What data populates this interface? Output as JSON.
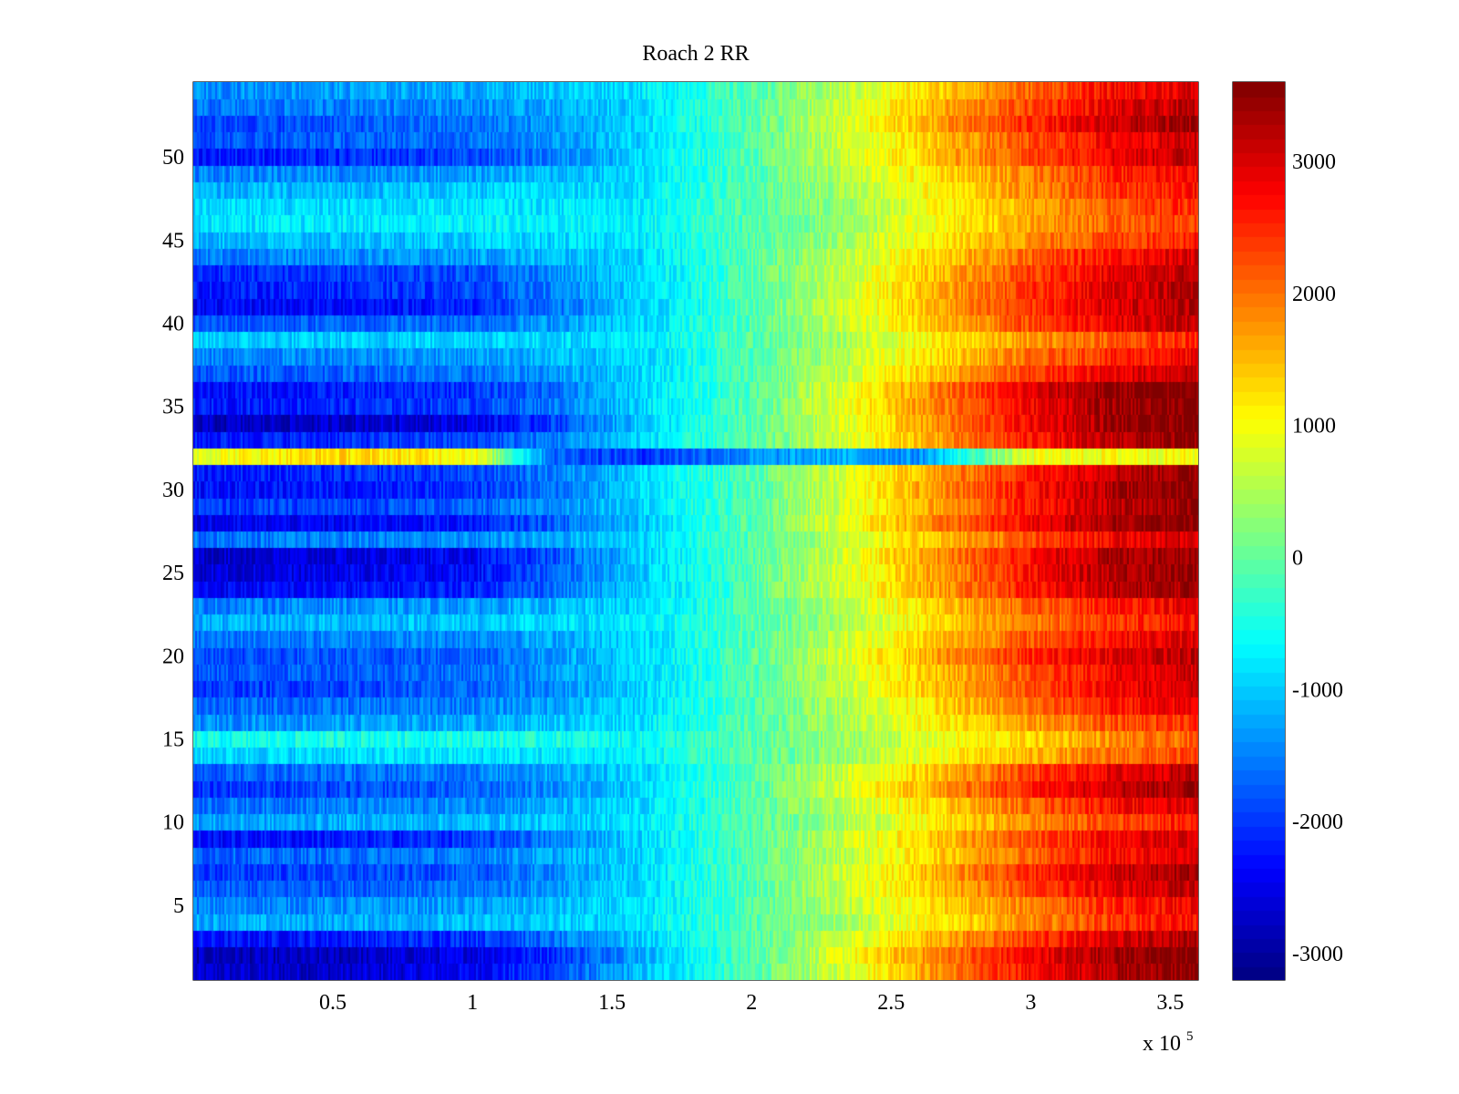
{
  "chart_data": {
    "type": "heatmap",
    "title": "Roach 2 RR",
    "xlabel": "",
    "ylabel": "",
    "x_multiplier_label": {
      "base": "x 10",
      "exponent": "5"
    },
    "xlim": [
      0,
      360000
    ],
    "ylim": [
      0.5,
      54.5
    ],
    "x_ticks": [
      50000,
      100000,
      150000,
      200000,
      250000,
      300000,
      350000
    ],
    "x_tick_labels": [
      "0.5",
      "1",
      "1.5",
      "2",
      "2.5",
      "3",
      "3.5"
    ],
    "y_ticks": [
      5,
      10,
      15,
      20,
      25,
      30,
      35,
      40,
      45,
      50
    ],
    "y_tick_labels": [
      "5",
      "10",
      "15",
      "20",
      "25",
      "30",
      "35",
      "40",
      "45",
      "50"
    ],
    "rows": 54,
    "colormap": "jet",
    "clim": [
      -3200,
      3600
    ],
    "colorbar_ticks": [
      -3000,
      -2000,
      -1000,
      0,
      1000,
      2000,
      3000
    ],
    "colorbar_tick_labels": [
      "-3000",
      "-2000",
      "-1000",
      "0",
      "1000",
      "2000",
      "3000"
    ],
    "trend_x": [
      0,
      50000,
      100000,
      130000,
      160000,
      200000,
      230000,
      260000,
      300000,
      330000,
      360000
    ],
    "row_profiles": [
      {
        "row": 1,
        "values": [
          -2700,
          -2700,
          -2400,
          -1900,
          -1100,
          -100,
          700,
          1600,
          2700,
          3300,
          3500
        ]
      },
      {
        "row": 2,
        "values": [
          -2800,
          -2800,
          -2500,
          -2000,
          -1200,
          -100,
          800,
          1700,
          2800,
          3400,
          3600
        ]
      },
      {
        "row": 3,
        "values": [
          -2300,
          -2200,
          -2000,
          -1600,
          -1000,
          -100,
          600,
          1400,
          2400,
          3000,
          3300
        ]
      },
      {
        "row": 4,
        "values": [
          -1200,
          -1200,
          -1100,
          -1000,
          -800,
          -100,
          400,
          1000,
          1800,
          2400,
          2700
        ]
      },
      {
        "row": 5,
        "values": [
          -1500,
          -1400,
          -1300,
          -1100,
          -900,
          -100,
          500,
          1100,
          1900,
          2500,
          2800
        ]
      },
      {
        "row": 6,
        "values": [
          -1800,
          -1700,
          -1600,
          -1300,
          -900,
          -100,
          600,
          1300,
          2300,
          2900,
          3200
        ]
      },
      {
        "row": 7,
        "values": [
          -2000,
          -1900,
          -1800,
          -1400,
          -900,
          -100,
          600,
          1400,
          2500,
          3100,
          3400
        ]
      },
      {
        "row": 8,
        "values": [
          -1700,
          -1600,
          -1500,
          -1200,
          -900,
          -100,
          500,
          1200,
          2100,
          2700,
          3000
        ]
      },
      {
        "row": 9,
        "values": [
          -2300,
          -2200,
          -2000,
          -1500,
          -900,
          -100,
          600,
          1300,
          2200,
          2800,
          3100
        ]
      },
      {
        "row": 10,
        "values": [
          -1300,
          -1200,
          -1100,
          -1000,
          -800,
          -100,
          400,
          1000,
          1800,
          2300,
          2600
        ]
      },
      {
        "row": 11,
        "values": [
          -1600,
          -1500,
          -1400,
          -1200,
          -900,
          -100,
          500,
          1200,
          2100,
          2700,
          3000
        ]
      },
      {
        "row": 12,
        "values": [
          -2000,
          -1900,
          -1700,
          -1400,
          -900,
          -100,
          700,
          1500,
          2600,
          3200,
          3400
        ]
      },
      {
        "row": 13,
        "values": [
          -1700,
          -1600,
          -1500,
          -1200,
          -900,
          -100,
          600,
          1300,
          2300,
          2900,
          3200
        ]
      },
      {
        "row": 14,
        "values": [
          -900,
          -900,
          -800,
          -800,
          -700,
          -100,
          300,
          900,
          1500,
          2000,
          2300
        ]
      },
      {
        "row": 15,
        "values": [
          -600,
          -500,
          -500,
          -500,
          -600,
          -100,
          300,
          800,
          1300,
          1800,
          2100
        ]
      },
      {
        "row": 16,
        "values": [
          -1400,
          -1300,
          -1200,
          -1000,
          -800,
          -100,
          400,
          1000,
          1700,
          2200,
          2500
        ]
      },
      {
        "row": 17,
        "values": [
          -1700,
          -1600,
          -1500,
          -1200,
          -900,
          -100,
          500,
          1100,
          2000,
          2600,
          2900
        ]
      },
      {
        "row": 18,
        "values": [
          -2000,
          -1900,
          -1700,
          -1400,
          -900,
          -100,
          600,
          1300,
          2200,
          2800,
          3100
        ]
      },
      {
        "row": 19,
        "values": [
          -1800,
          -1700,
          -1600,
          -1300,
          -900,
          -100,
          600,
          1300,
          2200,
          2800,
          3100
        ]
      },
      {
        "row": 20,
        "values": [
          -1900,
          -1800,
          -1700,
          -1300,
          -900,
          -100,
          700,
          1500,
          2500,
          3000,
          3200
        ]
      },
      {
        "row": 21,
        "values": [
          -1600,
          -1500,
          -1400,
          -1200,
          -900,
          -100,
          600,
          1300,
          2200,
          2700,
          3000
        ]
      },
      {
        "row": 22,
        "values": [
          -1200,
          -1100,
          -1000,
          -900,
          -800,
          -100,
          400,
          1100,
          1900,
          2400,
          2700
        ]
      },
      {
        "row": 23,
        "values": [
          -1500,
          -1400,
          -1300,
          -1100,
          -900,
          -100,
          500,
          1200,
          2100,
          2600,
          2900
        ]
      },
      {
        "row": 24,
        "values": [
          -2400,
          -2300,
          -2100,
          -1600,
          -1000,
          -100,
          700,
          1500,
          2600,
          3200,
          3400
        ]
      },
      {
        "row": 25,
        "values": [
          -2600,
          -2500,
          -2300,
          -1700,
          -1000,
          -100,
          700,
          1500,
          2700,
          3300,
          3500
        ]
      },
      {
        "row": 26,
        "values": [
          -2700,
          -2600,
          -2400,
          -1800,
          -1000,
          -100,
          700,
          1600,
          2700,
          3300,
          3500
        ]
      },
      {
        "row": 27,
        "values": [
          -1600,
          -1500,
          -1400,
          -1200,
          -900,
          -100,
          600,
          1300,
          2200,
          2800,
          3100
        ]
      },
      {
        "row": 28,
        "values": [
          -2500,
          -2400,
          -2200,
          -1700,
          -1000,
          -100,
          800,
          1700,
          2800,
          3400,
          3600
        ]
      },
      {
        "row": 29,
        "values": [
          -2000,
          -1900,
          -1700,
          -1400,
          -900,
          -100,
          700,
          1500,
          2600,
          3200,
          3500
        ]
      },
      {
        "row": 30,
        "values": [
          -2300,
          -2200,
          -2000,
          -1600,
          -900,
          -100,
          700,
          1600,
          2700,
          3300,
          3600
        ]
      },
      {
        "row": 31,
        "values": [
          -2200,
          -2100,
          -1900,
          -1500,
          -900,
          -100,
          700,
          1500,
          2600,
          3200,
          3500
        ]
      },
      {
        "row": 32,
        "values": [
          900,
          1300,
          1100,
          -1700,
          -2000,
          -1400,
          -1200,
          -1400,
          900,
          1000,
          1000
        ]
      },
      {
        "row": 33,
        "values": [
          -2200,
          -2100,
          -1900,
          -1500,
          -900,
          -100,
          700,
          1500,
          2600,
          3200,
          3500
        ]
      },
      {
        "row": 34,
        "values": [
          -2800,
          -2700,
          -2500,
          -1900,
          -1000,
          -100,
          700,
          1600,
          2800,
          3400,
          3600
        ]
      },
      {
        "row": 35,
        "values": [
          -2200,
          -2100,
          -1900,
          -1500,
          -900,
          -100,
          800,
          1700,
          2800,
          3400,
          3600
        ]
      },
      {
        "row": 36,
        "values": [
          -2300,
          -2200,
          -2000,
          -1600,
          -900,
          -100,
          800,
          1700,
          2900,
          3500,
          3600
        ]
      },
      {
        "row": 37,
        "values": [
          -1800,
          -1700,
          -1600,
          -1300,
          -900,
          -100,
          600,
          1300,
          2300,
          2900,
          3200
        ]
      },
      {
        "row": 38,
        "values": [
          -1500,
          -1400,
          -1300,
          -1100,
          -900,
          -100,
          500,
          1100,
          2000,
          2500,
          2800
        ]
      },
      {
        "row": 39,
        "values": [
          -1000,
          -1000,
          -900,
          -900,
          -800,
          -100,
          400,
          1000,
          1700,
          2200,
          2500
        ]
      },
      {
        "row": 40,
        "values": [
          -1800,
          -1700,
          -1600,
          -1300,
          -900,
          -100,
          600,
          1300,
          2300,
          2900,
          3200
        ]
      },
      {
        "row": 41,
        "values": [
          -2400,
          -2300,
          -2100,
          -1600,
          -1000,
          -100,
          700,
          1400,
          2400,
          3000,
          3300
        ]
      },
      {
        "row": 42,
        "values": [
          -2200,
          -2100,
          -1900,
          -1500,
          -900,
          -100,
          600,
          1400,
          2400,
          3000,
          3300
        ]
      },
      {
        "row": 43,
        "values": [
          -2100,
          -2000,
          -1800,
          -1400,
          -900,
          -100,
          600,
          1300,
          2300,
          2900,
          3200
        ]
      },
      {
        "row": 44,
        "values": [
          -1500,
          -1400,
          -1300,
          -1100,
          -900,
          -100,
          500,
          1200,
          2100,
          2700,
          3000
        ]
      },
      {
        "row": 45,
        "values": [
          -1100,
          -1100,
          -1000,
          -900,
          -800,
          -100,
          400,
          1000,
          1800,
          2300,
          2600
        ]
      },
      {
        "row": 46,
        "values": [
          -800,
          -800,
          -700,
          -700,
          -700,
          -100,
          300,
          900,
          1600,
          2100,
          2400
        ]
      },
      {
        "row": 47,
        "values": [
          -900,
          -900,
          -800,
          -800,
          -700,
          -100,
          300,
          900,
          1600,
          2200,
          2500
        ]
      },
      {
        "row": 48,
        "values": [
          -1200,
          -1100,
          -1000,
          -900,
          -800,
          -100,
          400,
          1000,
          1800,
          2400,
          2700
        ]
      },
      {
        "row": 49,
        "values": [
          -1500,
          -1400,
          -1300,
          -1100,
          -900,
          -100,
          500,
          1100,
          1900,
          2500,
          2800
        ]
      },
      {
        "row": 50,
        "values": [
          -2200,
          -2100,
          -1900,
          -1500,
          -900,
          -100,
          600,
          1300,
          2300,
          2900,
          3200
        ]
      },
      {
        "row": 51,
        "values": [
          -1800,
          -1700,
          -1600,
          -1300,
          -900,
          -100,
          600,
          1300,
          2200,
          2800,
          3100
        ]
      },
      {
        "row": 52,
        "values": [
          -1900,
          -1800,
          -1600,
          -1300,
          -900,
          -100,
          700,
          1500,
          2500,
          3100,
          3400
        ]
      },
      {
        "row": 53,
        "values": [
          -1600,
          -1500,
          -1400,
          -1200,
          -900,
          -100,
          600,
          1400,
          2300,
          2900,
          3200
        ]
      },
      {
        "row": 54,
        "values": [
          -1400,
          -1300,
          -1200,
          -1000,
          -800,
          -100,
          500,
          1200,
          2100,
          2700,
          3000
        ]
      }
    ]
  }
}
